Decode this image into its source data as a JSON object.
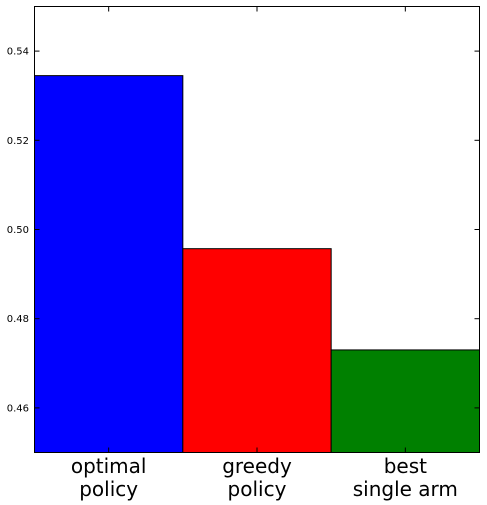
{
  "chart_data": {
    "type": "bar",
    "categories": [
      [
        "optimal",
        "policy"
      ],
      [
        "greedy",
        "policy"
      ],
      [
        "best",
        "single arm"
      ]
    ],
    "values": [
      0.5345,
      0.4957,
      0.473
    ],
    "colors": [
      "#0000ff",
      "#ff0000",
      "#008000"
    ],
    "ylim": [
      0.45,
      0.55
    ],
    "yticks": [
      0.46,
      0.48,
      0.5,
      0.52,
      0.54
    ],
    "ytick_labels": [
      "0.46",
      "0.48",
      "0.50",
      "0.52",
      "0.54"
    ],
    "title": "",
    "xlabel": "",
    "ylabel": "",
    "grid": false
  }
}
